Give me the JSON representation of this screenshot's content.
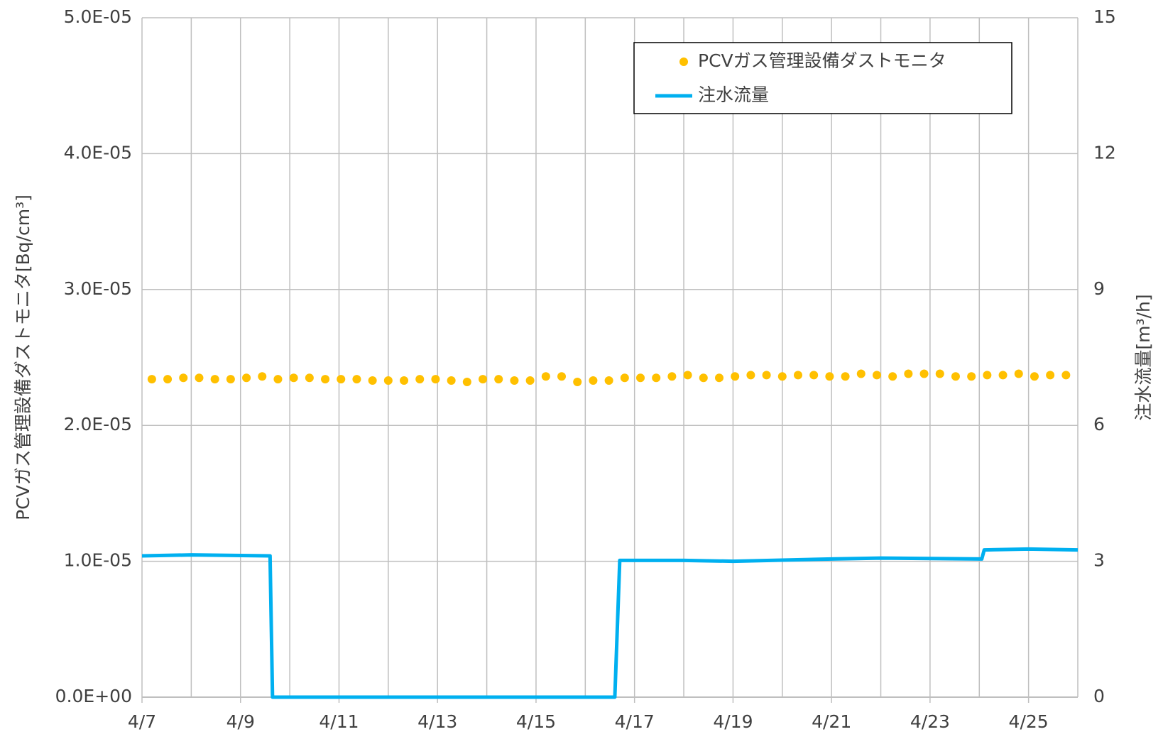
{
  "chart_data": {
    "type": "scatter-line",
    "xlim": [
      7,
      26
    ],
    "xticks": [
      {
        "value": 7,
        "label": "4/7"
      },
      {
        "value": 9,
        "label": "4/9"
      },
      {
        "value": 11,
        "label": "4/11"
      },
      {
        "value": 13,
        "label": "4/13"
      },
      {
        "value": 15,
        "label": "4/15"
      },
      {
        "value": 17,
        "label": "4/17"
      },
      {
        "value": 19,
        "label": "4/19"
      },
      {
        "value": 21,
        "label": "4/21"
      },
      {
        "value": 23,
        "label": "4/23"
      },
      {
        "value": 25,
        "label": "4/25"
      }
    ],
    "ylim": [
      0,
      5e-05
    ],
    "yticks": [
      {
        "value": 0,
        "label": "0.0E+00"
      },
      {
        "value": 1e-05,
        "label": "1.0E-05"
      },
      {
        "value": 2e-05,
        "label": "2.0E-05"
      },
      {
        "value": 3e-05,
        "label": "3.0E-05"
      },
      {
        "value": 4e-05,
        "label": "4.0E-05"
      },
      {
        "value": 5e-05,
        "label": "5.0E-05"
      }
    ],
    "y2lim": [
      0,
      15
    ],
    "y2ticks": [
      0,
      3,
      6,
      9,
      12,
      15
    ],
    "ylabel": "PCVガス管理設備ダストモニタ[Bq/cm³]",
    "y2label": "注水流量[m³/h]",
    "grid": true,
    "legend": "top-right",
    "series": [
      {
        "name": "PCVガス管理設備ダストモニタ",
        "kind": "scatter",
        "color": "#ffc000",
        "x": [
          7.2,
          7.52,
          7.84,
          8.16,
          8.48,
          8.8,
          9.12,
          9.44,
          9.76,
          10.08,
          10.4,
          10.72,
          11.04,
          11.36,
          11.68,
          12.0,
          12.32,
          12.64,
          12.96,
          13.28,
          13.6,
          13.92,
          14.24,
          14.56,
          14.88,
          15.2,
          15.52,
          15.84,
          16.16,
          16.48,
          16.8,
          17.12,
          17.44,
          17.76,
          18.08,
          18.4,
          18.72,
          19.04,
          19.36,
          19.68,
          20.0,
          20.32,
          20.64,
          20.96,
          21.28,
          21.6,
          21.92,
          22.24,
          22.56,
          22.88,
          23.2,
          23.52,
          23.84,
          24.16,
          24.48,
          24.8,
          25.12,
          25.44,
          25.76
        ],
        "values": [
          2.34e-05,
          2.34e-05,
          2.35e-05,
          2.35e-05,
          2.34e-05,
          2.34e-05,
          2.35e-05,
          2.36e-05,
          2.34e-05,
          2.35e-05,
          2.35e-05,
          2.34e-05,
          2.34e-05,
          2.34e-05,
          2.33e-05,
          2.33e-05,
          2.33e-05,
          2.34e-05,
          2.34e-05,
          2.33e-05,
          2.32e-05,
          2.34e-05,
          2.34e-05,
          2.33e-05,
          2.33e-05,
          2.36e-05,
          2.36e-05,
          2.32e-05,
          2.33e-05,
          2.33e-05,
          2.35e-05,
          2.35e-05,
          2.35e-05,
          2.36e-05,
          2.37e-05,
          2.35e-05,
          2.35e-05,
          2.36e-05,
          2.37e-05,
          2.37e-05,
          2.36e-05,
          2.37e-05,
          2.37e-05,
          2.36e-05,
          2.36e-05,
          2.38e-05,
          2.37e-05,
          2.36e-05,
          2.38e-05,
          2.38e-05,
          2.38e-05,
          2.36e-05,
          2.36e-05,
          2.37e-05,
          2.37e-05,
          2.38e-05,
          2.36e-05,
          2.37e-05,
          2.37e-05
        ]
      },
      {
        "name": "注水流量",
        "kind": "line",
        "color": "#00b0f0",
        "axis": "y2",
        "x": [
          7,
          8,
          9.6,
          9.65,
          16.6,
          16.7,
          18,
          19,
          21,
          22,
          24.05,
          24.1,
          25,
          26
        ],
        "values": [
          3.12,
          3.14,
          3.12,
          0,
          0,
          3.02,
          3.02,
          3.0,
          3.05,
          3.07,
          3.05,
          3.25,
          3.27,
          3.25
        ]
      }
    ]
  }
}
